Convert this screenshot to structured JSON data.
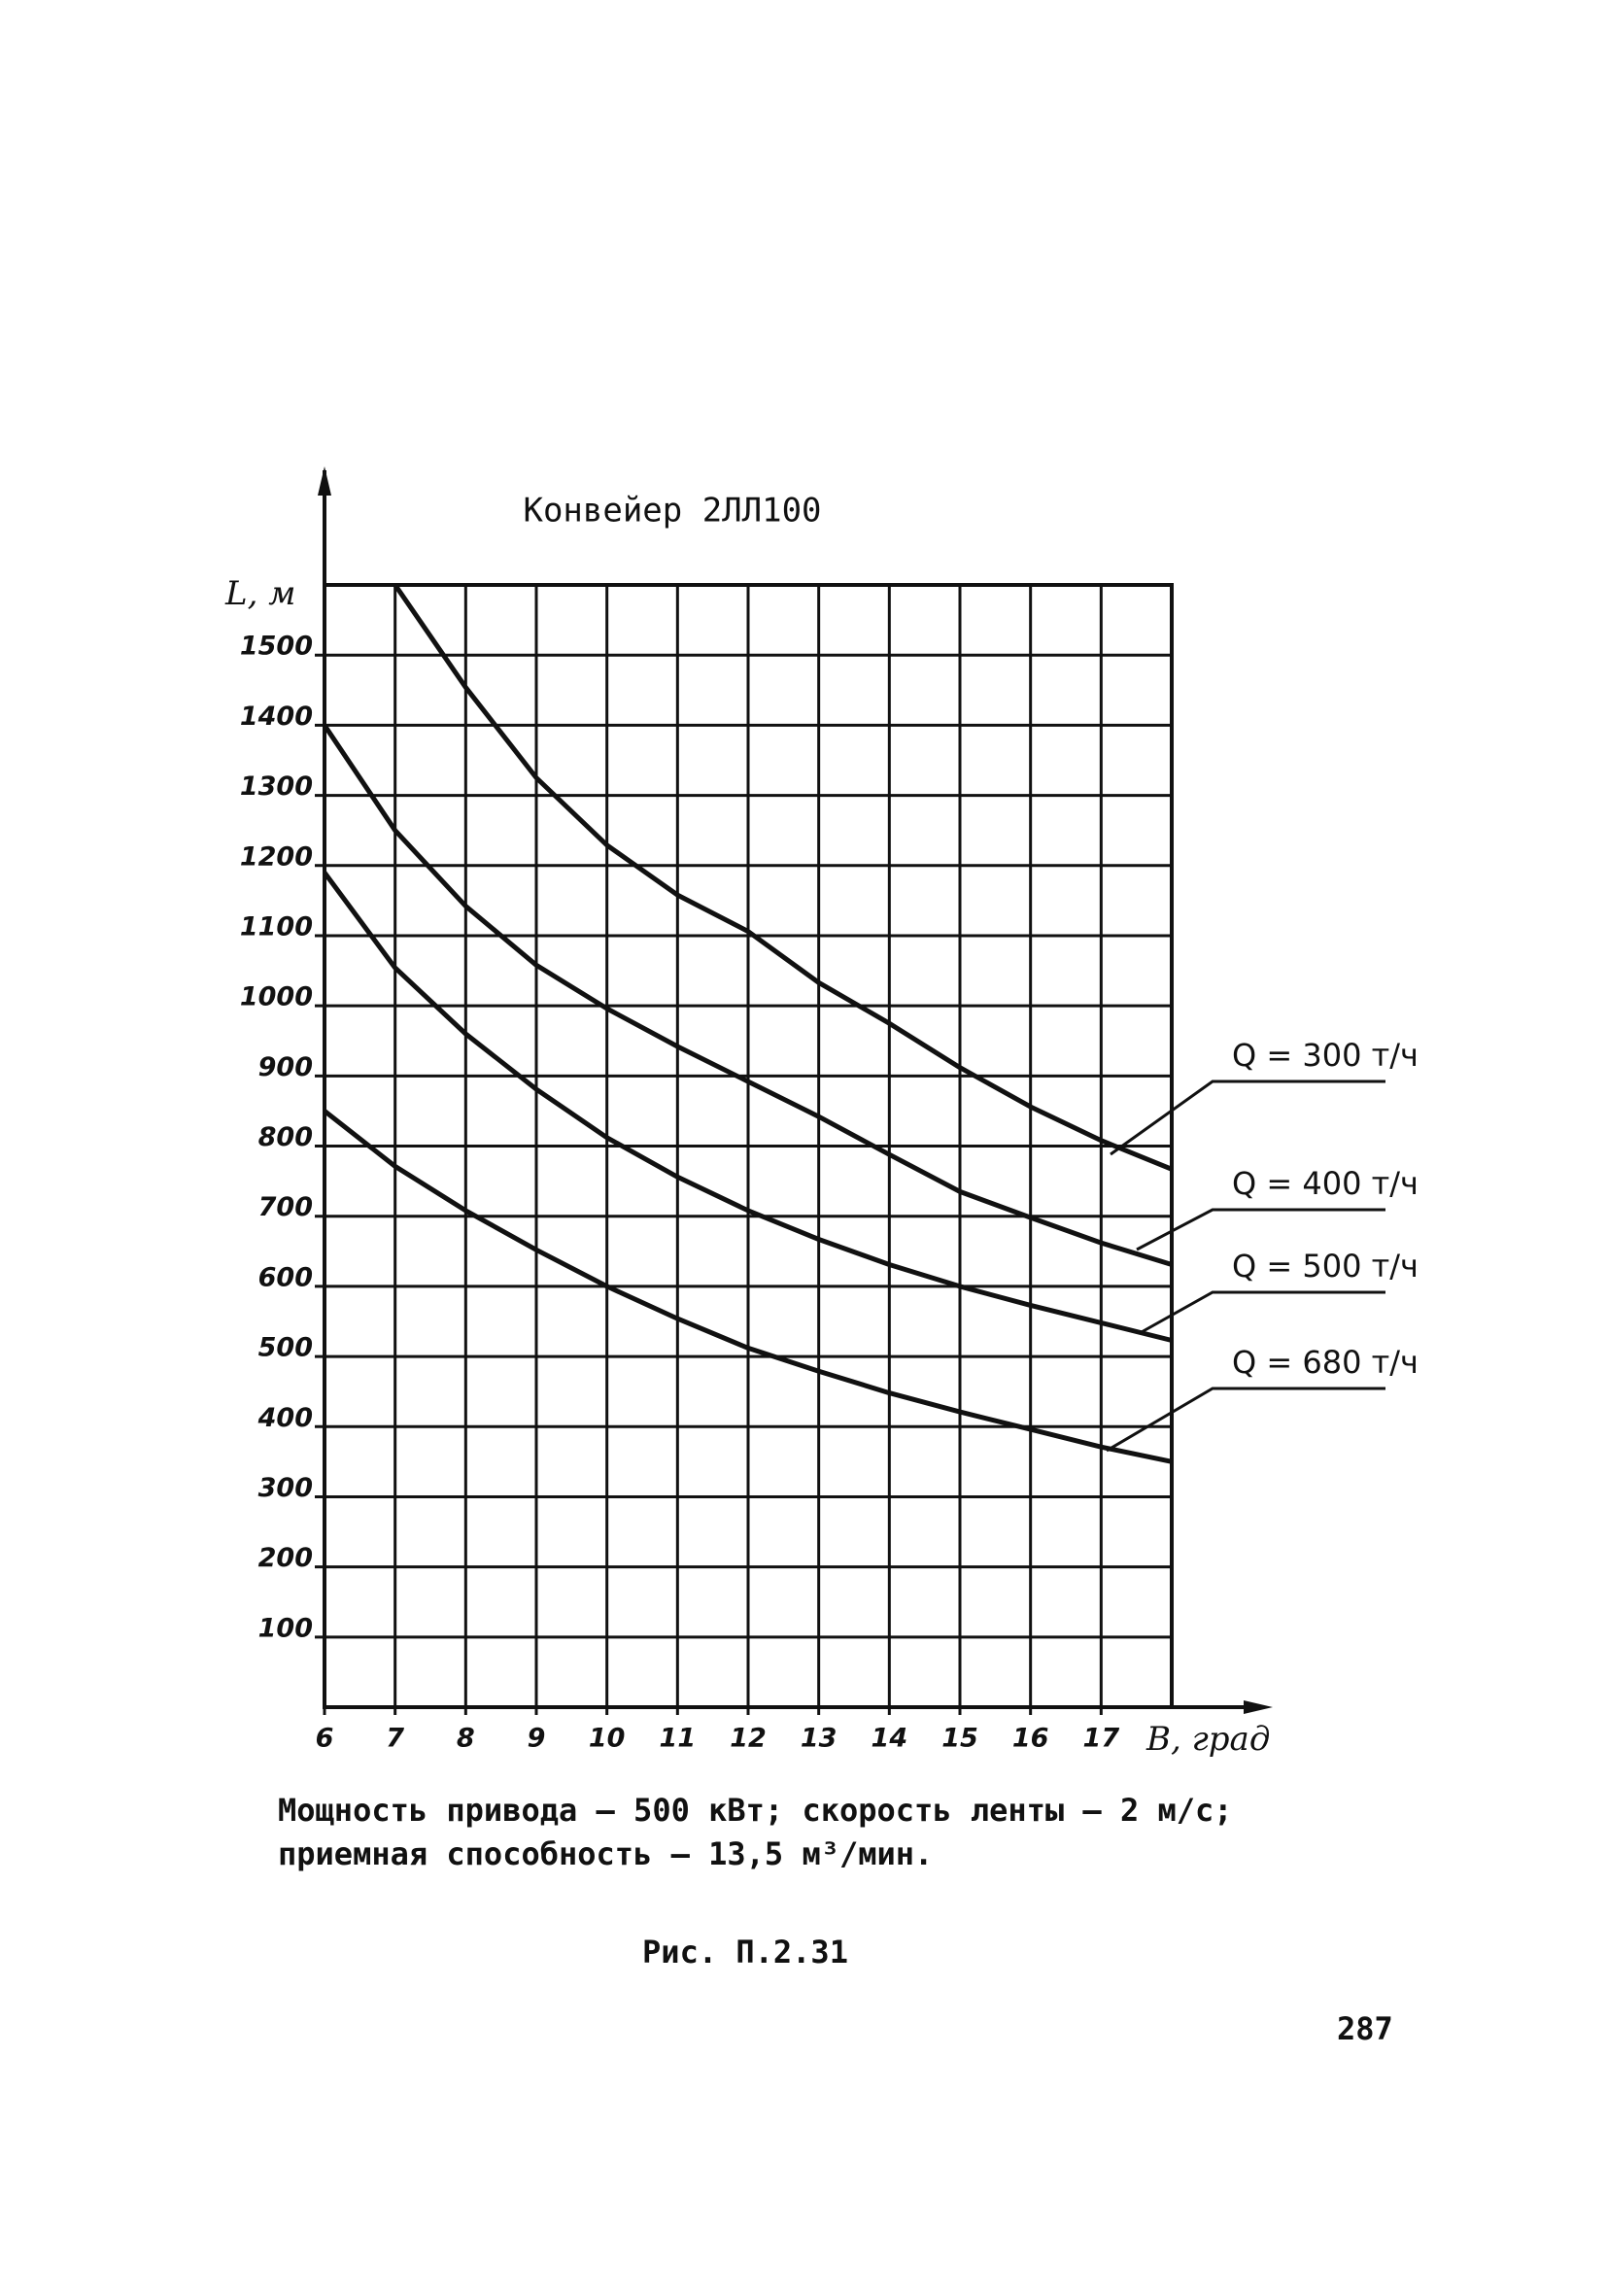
{
  "chart_data": {
    "type": "line",
    "title": "Конвейер 2ЛЛ100",
    "x_label": "В, град",
    "y_label": "L, м",
    "x": [
      6,
      7,
      8,
      9,
      10,
      11,
      12,
      13,
      14,
      15,
      16,
      17,
      18
    ],
    "xlim": [
      6,
      18
    ],
    "xticks": [
      6,
      7,
      8,
      9,
      10,
      11,
      12,
      13,
      14,
      15,
      16,
      17
    ],
    "ylim": [
      0,
      1600
    ],
    "yticks": [
      100,
      200,
      300,
      400,
      500,
      600,
      700,
      800,
      900,
      1000,
      1100,
      1200,
      1300,
      1400,
      1500
    ],
    "grid": true,
    "series": [
      {
        "name": "Q = 300 т/ч",
        "color": "#111111",
        "values": [
          null,
          1600,
          1454,
          1325,
          1229,
          1158,
          1106,
          1033,
          975,
          912,
          856,
          808,
          767
        ]
      },
      {
        "name": "Q = 400 т/ч",
        "color": "#111111",
        "values": [
          1400,
          1250,
          1142,
          1058,
          996,
          942,
          892,
          842,
          788,
          735,
          698,
          662,
          631
        ]
      },
      {
        "name": "Q = 500 т/ч",
        "color": "#111111",
        "values": [
          1190,
          1054,
          960,
          881,
          812,
          756,
          708,
          667,
          631,
          600,
          573,
          548,
          523
        ]
      },
      {
        "name": "Q = 680 т/ч",
        "color": "#111111",
        "values": [
          850,
          771,
          708,
          652,
          600,
          554,
          512,
          479,
          448,
          421,
          396,
          371,
          350
        ]
      }
    ]
  },
  "caption": [
    "Мощность привода – 500 кВт; скорость ленты – 2 м/с;",
    "приемная способность – 13,5 м³/мин."
  ],
  "figure": "Рис. П.2.31",
  "page_number": "287"
}
